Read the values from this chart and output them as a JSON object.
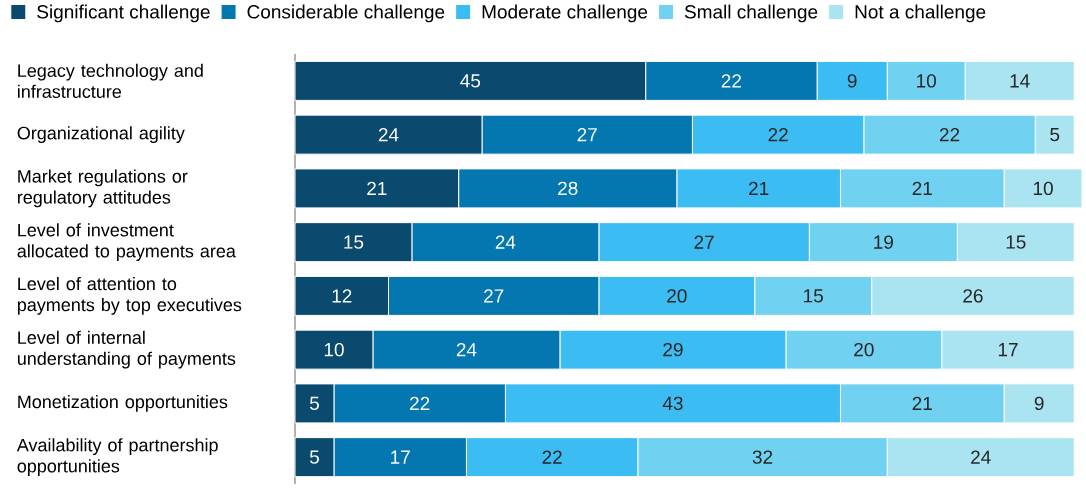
{
  "chart_data": {
    "type": "bar",
    "orientation": "horizontal",
    "stacked": true,
    "data_labels": true,
    "legend": "top left",
    "categories": [
      "Legacy technology and infrastructure",
      "Organizational agility",
      "Market regulations or regulatory attitudes",
      "Level of investment allocated to payments area",
      "Level of attention to payments by top executives",
      "Level of internal understanding of payments",
      "Monetization opportunities",
      "Availability of partnership opportunities"
    ],
    "series": [
      {
        "name": "Significant challenge",
        "color": "#0b4a6f",
        "values": [
          45,
          24,
          21,
          15,
          12,
          10,
          5,
          5
        ]
      },
      {
        "name": "Considerable challenge",
        "color": "#0577b0",
        "values": [
          22,
          27,
          28,
          24,
          27,
          24,
          22,
          17
        ]
      },
      {
        "name": "Moderate challenge",
        "color": "#3bbcf3",
        "values": [
          9,
          22,
          21,
          27,
          20,
          29,
          43,
          22
        ]
      },
      {
        "name": "Small challenge",
        "color": "#70d1f1",
        "values": [
          10,
          22,
          21,
          19,
          15,
          20,
          21,
          32
        ]
      },
      {
        "name": "Not a challenge",
        "color": "#a9e4f0",
        "values": [
          14,
          5,
          10,
          15,
          26,
          17,
          9,
          24
        ]
      }
    ]
  }
}
